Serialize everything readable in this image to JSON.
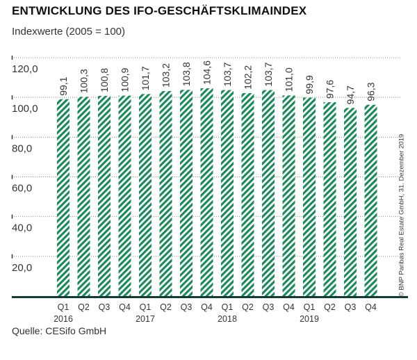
{
  "title": "ENTWICKLUNG DES IFO-GESCHÄFTSKLIMAINDEX",
  "subtitle": "Indexwerte (2005 = 100)",
  "source": "Quelle: CESifo GmbH",
  "copyright": "© BNP Paribas Real Estate GmbH, 31. Dezember 2019",
  "colors": {
    "bar": "#1a8a5a",
    "baseline": "#123b33",
    "grid": "#888888"
  },
  "chart_data": {
    "type": "bar",
    "title": "ENTWICKLUNG DES IFO-GESCHÄFTSKLIMAINDEX",
    "subtitle": "Indexwerte (2005 = 100)",
    "categories": [
      "Q1",
      "Q2",
      "Q3",
      "Q4",
      "Q1",
      "Q2",
      "Q3",
      "Q4",
      "Q1",
      "Q2",
      "Q3",
      "Q4",
      "Q1",
      "Q2",
      "Q3",
      "Q4"
    ],
    "years": [
      {
        "label": "2016",
        "index": 0
      },
      {
        "label": "2017",
        "index": 4
      },
      {
        "label": "2018",
        "index": 8
      },
      {
        "label": "2019",
        "index": 12
      }
    ],
    "values": [
      99.1,
      100.3,
      100.8,
      100.9,
      101.7,
      103.2,
      103.8,
      104.6,
      103.7,
      102.2,
      103.7,
      101.0,
      99.9,
      97.6,
      94.7,
      96.3
    ],
    "value_labels": [
      "99,1",
      "100,3",
      "100,8",
      "100,9",
      "101,7",
      "103,2",
      "103,8",
      "104,6",
      "103,7",
      "102,2",
      "103,7",
      "101,0",
      "99,9",
      "97,6",
      "94,7",
      "96,3"
    ],
    "yticks": [
      20,
      40,
      60,
      80,
      100,
      120
    ],
    "ytick_labels": [
      "20,0",
      "40,0",
      "60,0",
      "80,0",
      "100,0",
      "120,0"
    ],
    "ylim": [
      0,
      120
    ],
    "grid": true,
    "bar_pattern": "diagonal-hatch",
    "xlabel": "",
    "ylabel": ""
  }
}
